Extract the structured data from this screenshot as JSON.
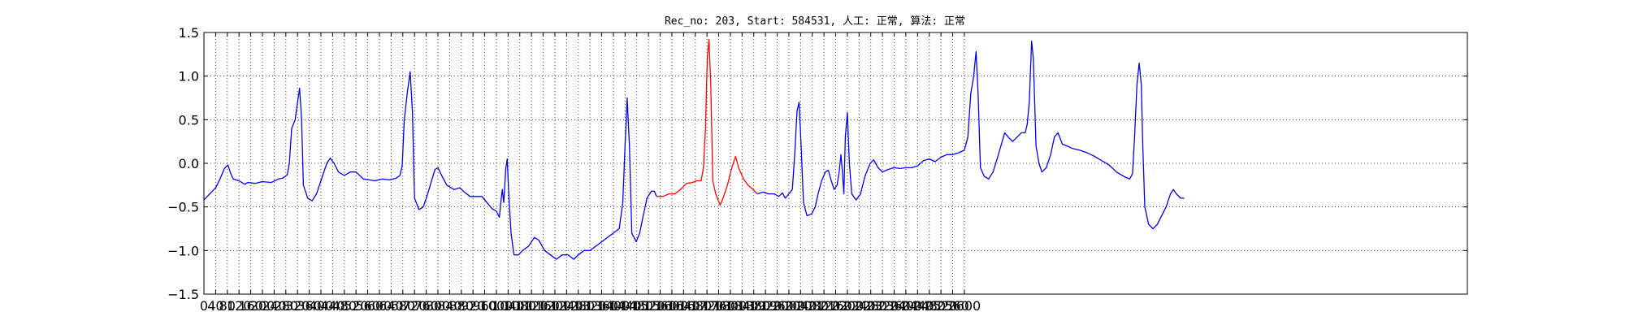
{
  "chart_data": {
    "type": "line",
    "title": "Rec_no: 203, Start: 584531, 人工: 正常, 算法: 正常",
    "xlabel": "",
    "ylabel": "",
    "xlim": [
      0,
      4320
    ],
    "ylim": [
      -1.5,
      1.5
    ],
    "grid": true,
    "x_ticks": [
      0,
      40,
      80,
      120,
      160,
      200,
      240,
      280,
      320,
      360,
      400,
      440,
      480,
      520,
      560,
      600,
      640,
      680,
      720,
      760,
      800,
      840,
      880,
      920,
      960,
      1000,
      1040,
      1080,
      1120,
      1160,
      1200,
      1240,
      1280,
      1320,
      1360,
      1400,
      1440,
      1480,
      1520,
      1560,
      1600,
      1640,
      1680,
      1720,
      1760,
      1800,
      1840,
      1880,
      1920,
      1960,
      2000,
      2040,
      2080,
      2120,
      2160,
      2200,
      2240,
      2280,
      2320,
      2360,
      2400,
      2440,
      2480,
      2520,
      2560,
      2600
    ],
    "x_tick_labels": [
      "0",
      "40",
      "80",
      "120",
      "160",
      "200",
      "240",
      "280",
      "320",
      "360",
      "400",
      "440",
      "480",
      "520",
      "560",
      "600",
      "640",
      "680",
      "720",
      "760",
      "800",
      "840",
      "880",
      "920",
      "960",
      "1000",
      "1040",
      "1080",
      "1120",
      "1160",
      "1200",
      "1240",
      "1280",
      "1320",
      "1360",
      "1400",
      "1440",
      "1480",
      "1520",
      "1560",
      "1600",
      "1640",
      "1680",
      "1720",
      "1760",
      "1800",
      "1840",
      "1880",
      "1920",
      "1960",
      "2000",
      "2040",
      "2080",
      "2120",
      "2160",
      "2200",
      "2240",
      "2280",
      "2320",
      "2360",
      "2400",
      "2440",
      "2480",
      "2520",
      "2560",
      "2600"
    ],
    "y_ticks": [
      1.5,
      1.0,
      0.5,
      0.0,
      -0.5,
      -1.0,
      -1.5
    ],
    "y_tick_labels": [
      "1.5",
      "1.0",
      "0.5",
      "0.0",
      "−0.5",
      "−1.0",
      "−1.5"
    ],
    "series": [
      {
        "color": "#0000ff",
        "points": [
          [
            0,
            -0.42
          ],
          [
            20,
            -0.35
          ],
          [
            40,
            -0.28
          ],
          [
            55,
            -0.18
          ],
          [
            70,
            -0.06
          ],
          [
            82,
            -0.02
          ],
          [
            92,
            -0.12
          ],
          [
            100,
            -0.18
          ],
          [
            120,
            -0.2
          ],
          [
            140,
            -0.24
          ],
          [
            150,
            -0.22
          ],
          [
            175,
            -0.23
          ],
          [
            200,
            -0.21
          ],
          [
            230,
            -0.22
          ],
          [
            255,
            -0.18
          ],
          [
            270,
            -0.17
          ],
          [
            285,
            -0.13
          ],
          [
            292,
            0.0
          ],
          [
            300,
            0.4
          ],
          [
            312,
            0.5
          ],
          [
            320,
            0.7
          ],
          [
            327,
            0.86
          ],
          [
            334,
            0.5
          ],
          [
            340,
            -0.25
          ],
          [
            355,
            -0.4
          ],
          [
            370,
            -0.43
          ],
          [
            385,
            -0.35
          ],
          [
            400,
            -0.2
          ],
          [
            420,
            0.0
          ],
          [
            432,
            0.06
          ],
          [
            445,
            0.0
          ],
          [
            460,
            -0.1
          ],
          [
            480,
            -0.14
          ],
          [
            500,
            -0.1
          ],
          [
            520,
            -0.1
          ],
          [
            545,
            -0.18
          ],
          [
            565,
            -0.19
          ],
          [
            585,
            -0.2
          ],
          [
            610,
            -0.18
          ],
          [
            635,
            -0.19
          ],
          [
            658,
            -0.17
          ],
          [
            670,
            -0.14
          ],
          [
            678,
            -0.03
          ],
          [
            685,
            0.5
          ],
          [
            695,
            0.8
          ],
          [
            705,
            1.05
          ],
          [
            713,
            0.6
          ],
          [
            720,
            -0.4
          ],
          [
            735,
            -0.53
          ],
          [
            750,
            -0.5
          ],
          [
            765,
            -0.35
          ],
          [
            780,
            -0.18
          ],
          [
            790,
            -0.07
          ],
          [
            800,
            -0.05
          ],
          [
            810,
            -0.12
          ],
          [
            830,
            -0.25
          ],
          [
            855,
            -0.3
          ],
          [
            875,
            -0.28
          ],
          [
            890,
            -0.33
          ],
          [
            910,
            -0.38
          ],
          [
            935,
            -0.38
          ],
          [
            950,
            -0.38
          ],
          [
            965,
            -0.44
          ],
          [
            985,
            -0.52
          ],
          [
            1000,
            -0.55
          ],
          [
            1010,
            -0.62
          ],
          [
            1015,
            -0.45
          ],
          [
            1020,
            -0.3
          ],
          [
            1025,
            -0.45
          ],
          [
            1032,
            -0.06
          ],
          [
            1037,
            0.05
          ],
          [
            1043,
            -0.4
          ],
          [
            1050,
            -0.8
          ],
          [
            1060,
            -1.05
          ],
          [
            1075,
            -1.05
          ],
          [
            1090,
            -1.0
          ],
          [
            1110,
            -0.95
          ],
          [
            1130,
            -0.85
          ],
          [
            1145,
            -0.88
          ],
          [
            1165,
            -1.0
          ],
          [
            1185,
            -1.05
          ],
          [
            1205,
            -1.1
          ],
          [
            1225,
            -1.05
          ],
          [
            1245,
            -1.05
          ],
          [
            1265,
            -1.1
          ],
          [
            1280,
            -1.05
          ],
          [
            1300,
            -1.0
          ],
          [
            1320,
            -1.0
          ],
          [
            1340,
            -0.95
          ],
          [
            1360,
            -0.9
          ],
          [
            1380,
            -0.85
          ],
          [
            1400,
            -0.8
          ],
          [
            1420,
            -0.75
          ],
          [
            1432,
            -0.45
          ],
          [
            1440,
            0.2
          ],
          [
            1447,
            0.75
          ],
          [
            1455,
            0.2
          ],
          [
            1463,
            -0.8
          ],
          [
            1478,
            -0.9
          ],
          [
            1490,
            -0.8
          ],
          [
            1502,
            -0.6
          ],
          [
            1515,
            -0.4
          ],
          [
            1530,
            -0.32
          ],
          [
            1540,
            -0.32
          ],
          [
            1548,
            -0.38
          ]
        ]
      },
      {
        "color": "#ff0000",
        "points": [
          [
            1548,
            -0.38
          ],
          [
            1570,
            -0.38
          ],
          [
            1590,
            -0.35
          ],
          [
            1610,
            -0.35
          ],
          [
            1630,
            -0.3
          ],
          [
            1650,
            -0.23
          ],
          [
            1670,
            -0.22
          ],
          [
            1685,
            -0.2
          ],
          [
            1700,
            -0.2
          ],
          [
            1708,
            -0.05
          ],
          [
            1715,
            0.4
          ],
          [
            1721,
            1.2
          ],
          [
            1727,
            1.42
          ],
          [
            1733,
            0.9
          ],
          [
            1740,
            -0.2
          ],
          [
            1750,
            -0.35
          ],
          [
            1765,
            -0.48
          ],
          [
            1775,
            -0.4
          ],
          [
            1790,
            -0.25
          ],
          [
            1805,
            -0.05
          ],
          [
            1818,
            0.08
          ],
          [
            1828,
            -0.05
          ],
          [
            1845,
            -0.18
          ],
          [
            1860,
            -0.25
          ],
          [
            1878,
            -0.3
          ],
          [
            1892,
            -0.35
          ]
        ]
      },
      {
        "color": "#0000ff",
        "points": [
          [
            1892,
            -0.35
          ],
          [
            1912,
            -0.33
          ],
          [
            1930,
            -0.35
          ],
          [
            1950,
            -0.35
          ],
          [
            1965,
            -0.38
          ],
          [
            1978,
            -0.34
          ],
          [
            1988,
            -0.4
          ],
          [
            2000,
            -0.35
          ],
          [
            2012,
            -0.3
          ],
          [
            2020,
            0.1
          ],
          [
            2028,
            0.6
          ],
          [
            2035,
            0.7
          ],
          [
            2042,
            0.2
          ],
          [
            2050,
            -0.45
          ],
          [
            2062,
            -0.6
          ],
          [
            2078,
            -0.58
          ],
          [
            2090,
            -0.5
          ],
          [
            2100,
            -0.35
          ],
          [
            2112,
            -0.2
          ],
          [
            2125,
            -0.1
          ],
          [
            2135,
            -0.08
          ],
          [
            2145,
            -0.2
          ],
          [
            2155,
            -0.3
          ],
          [
            2165,
            -0.25
          ],
          [
            2172,
            -0.1
          ],
          [
            2178,
            0.1
          ],
          [
            2183,
            -0.1
          ],
          [
            2188,
            -0.35
          ],
          [
            2193,
            0.3
          ],
          [
            2200,
            0.58
          ],
          [
            2207,
            0.0
          ],
          [
            2215,
            -0.35
          ],
          [
            2230,
            -0.42
          ],
          [
            2245,
            -0.35
          ],
          [
            2260,
            -0.15
          ],
          [
            2278,
            0.0
          ],
          [
            2290,
            0.04
          ],
          [
            2305,
            -0.05
          ],
          [
            2320,
            -0.1
          ],
          [
            2340,
            -0.07
          ],
          [
            2360,
            -0.05
          ],
          [
            2380,
            -0.06
          ],
          [
            2400,
            -0.05
          ],
          [
            2420,
            -0.05
          ],
          [
            2440,
            -0.03
          ],
          [
            2460,
            0.03
          ],
          [
            2480,
            0.05
          ],
          [
            2500,
            0.02
          ],
          [
            2520,
            0.07
          ],
          [
            2540,
            0.1
          ],
          [
            2560,
            0.1
          ],
          [
            2580,
            0.12
          ],
          [
            2600,
            0.15
          ],
          [
            2612,
            0.3
          ],
          [
            2622,
            0.8
          ],
          [
            2632,
            1.0
          ],
          [
            2640,
            1.28
          ],
          [
            2647,
            0.8
          ],
          [
            2655,
            -0.05
          ],
          [
            2668,
            -0.15
          ],
          [
            2683,
            -0.18
          ],
          [
            2698,
            -0.1
          ],
          [
            2712,
            0.05
          ],
          [
            2725,
            0.2
          ],
          [
            2738,
            0.35
          ],
          [
            2750,
            0.3
          ],
          [
            2765,
            0.25
          ],
          [
            2780,
            0.3
          ],
          [
            2795,
            0.35
          ],
          [
            2808,
            0.35
          ],
          [
            2815,
            0.45
          ],
          [
            2822,
            0.7
          ],
          [
            2830,
            1.4
          ],
          [
            2836,
            1.2
          ],
          [
            2845,
            0.2
          ],
          [
            2855,
            0.0
          ],
          [
            2865,
            -0.1
          ],
          [
            2880,
            -0.05
          ],
          [
            2895,
            0.1
          ],
          [
            2908,
            0.3
          ],
          [
            2920,
            0.35
          ],
          [
            2935,
            0.22
          ],
          [
            2950,
            0.2
          ],
          [
            2970,
            0.17
          ],
          [
            2995,
            0.15
          ],
          [
            3020,
            0.12
          ],
          [
            3045,
            0.08
          ],
          [
            3070,
            0.03
          ],
          [
            3095,
            -0.02
          ],
          [
            3120,
            -0.1
          ],
          [
            3145,
            -0.15
          ],
          [
            3165,
            -0.18
          ],
          [
            3175,
            -0.12
          ],
          [
            3182,
            0.3
          ],
          [
            3190,
            0.9
          ],
          [
            3198,
            1.15
          ],
          [
            3205,
            0.9
          ],
          [
            3210,
            0.2
          ],
          [
            3217,
            -0.5
          ],
          [
            3230,
            -0.7
          ],
          [
            3245,
            -0.75
          ],
          [
            3260,
            -0.7
          ],
          [
            3275,
            -0.6
          ],
          [
            3290,
            -0.5
          ],
          [
            3305,
            -0.35
          ],
          [
            3315,
            -0.3
          ],
          [
            3325,
            -0.35
          ],
          [
            3340,
            -0.4
          ],
          [
            3352,
            -0.4
          ]
        ]
      }
    ]
  }
}
